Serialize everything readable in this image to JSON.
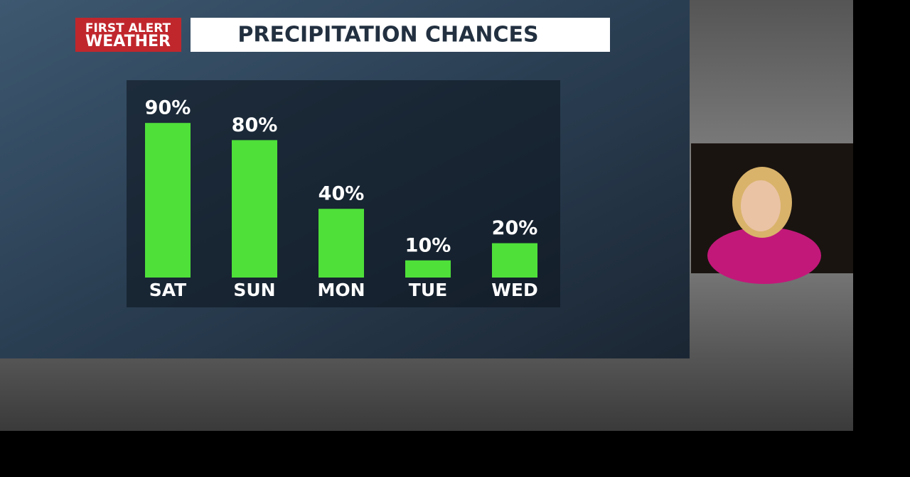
{
  "brand": {
    "line1": "FIRST ALERT",
    "line2": "WEATHER"
  },
  "chart_data": {
    "type": "bar",
    "title": "PRECIPITATION CHANCES",
    "categories": [
      "SAT",
      "SUN",
      "MON",
      "TUE",
      "WED"
    ],
    "values": [
      90,
      80,
      40,
      10,
      20
    ],
    "value_labels": [
      "90%",
      "80%",
      "40%",
      "10%",
      "20%"
    ],
    "color": "#4fe03a"
  }
}
